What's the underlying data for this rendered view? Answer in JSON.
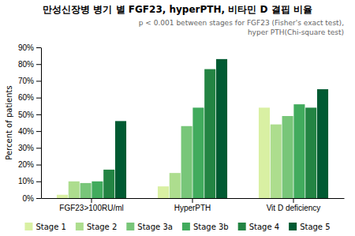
{
  "chart_data": {
    "type": "bar",
    "title": "만성신장병 병기 별 FGF23, hyperPTH, 비타민 D 결핍 비율",
    "subtitle": "p < 0.001 between stages for FGF23 (Fisher's exact test),\nhyper PTH(Chi-square test)",
    "ylabel": "Percent of patients",
    "categories": [
      "FGF23>100RU/ml",
      "HyperPTH",
      "Vit D deficiency"
    ],
    "series": [
      {
        "name": "Stage 1",
        "color": "#d9f0a3",
        "values": [
          2,
          7,
          54
        ]
      },
      {
        "name": "Stage 2",
        "color": "#addd8e",
        "values": [
          10,
          15,
          44
        ]
      },
      {
        "name": "Stage 3a",
        "color": "#78c679",
        "values": [
          9,
          43,
          49
        ]
      },
      {
        "name": "Stage 3b",
        "color": "#41ab5d",
        "values": [
          10,
          54,
          56
        ]
      },
      {
        "name": "Stage 4",
        "color": "#238443",
        "values": [
          17,
          77,
          54
        ]
      },
      {
        "name": "Stage 5",
        "color": "#005a32",
        "values": [
          46,
          83,
          65
        ]
      }
    ],
    "ylim": [
      0,
      90
    ],
    "yticks": [
      {
        "value": 0,
        "label": "0%"
      },
      {
        "value": 10,
        "label": "10%"
      },
      {
        "value": 20,
        "label": "20%"
      },
      {
        "value": 30,
        "label": "30%"
      },
      {
        "value": 40,
        "label": "40%"
      },
      {
        "value": 50,
        "label": "50%"
      },
      {
        "value": 60,
        "label": "60%"
      },
      {
        "value": 70,
        "label": "70%"
      },
      {
        "value": 80,
        "label": "80%"
      },
      {
        "value": 90,
        "label": "90%"
      }
    ],
    "grid": false,
    "legend": "bottom"
  }
}
